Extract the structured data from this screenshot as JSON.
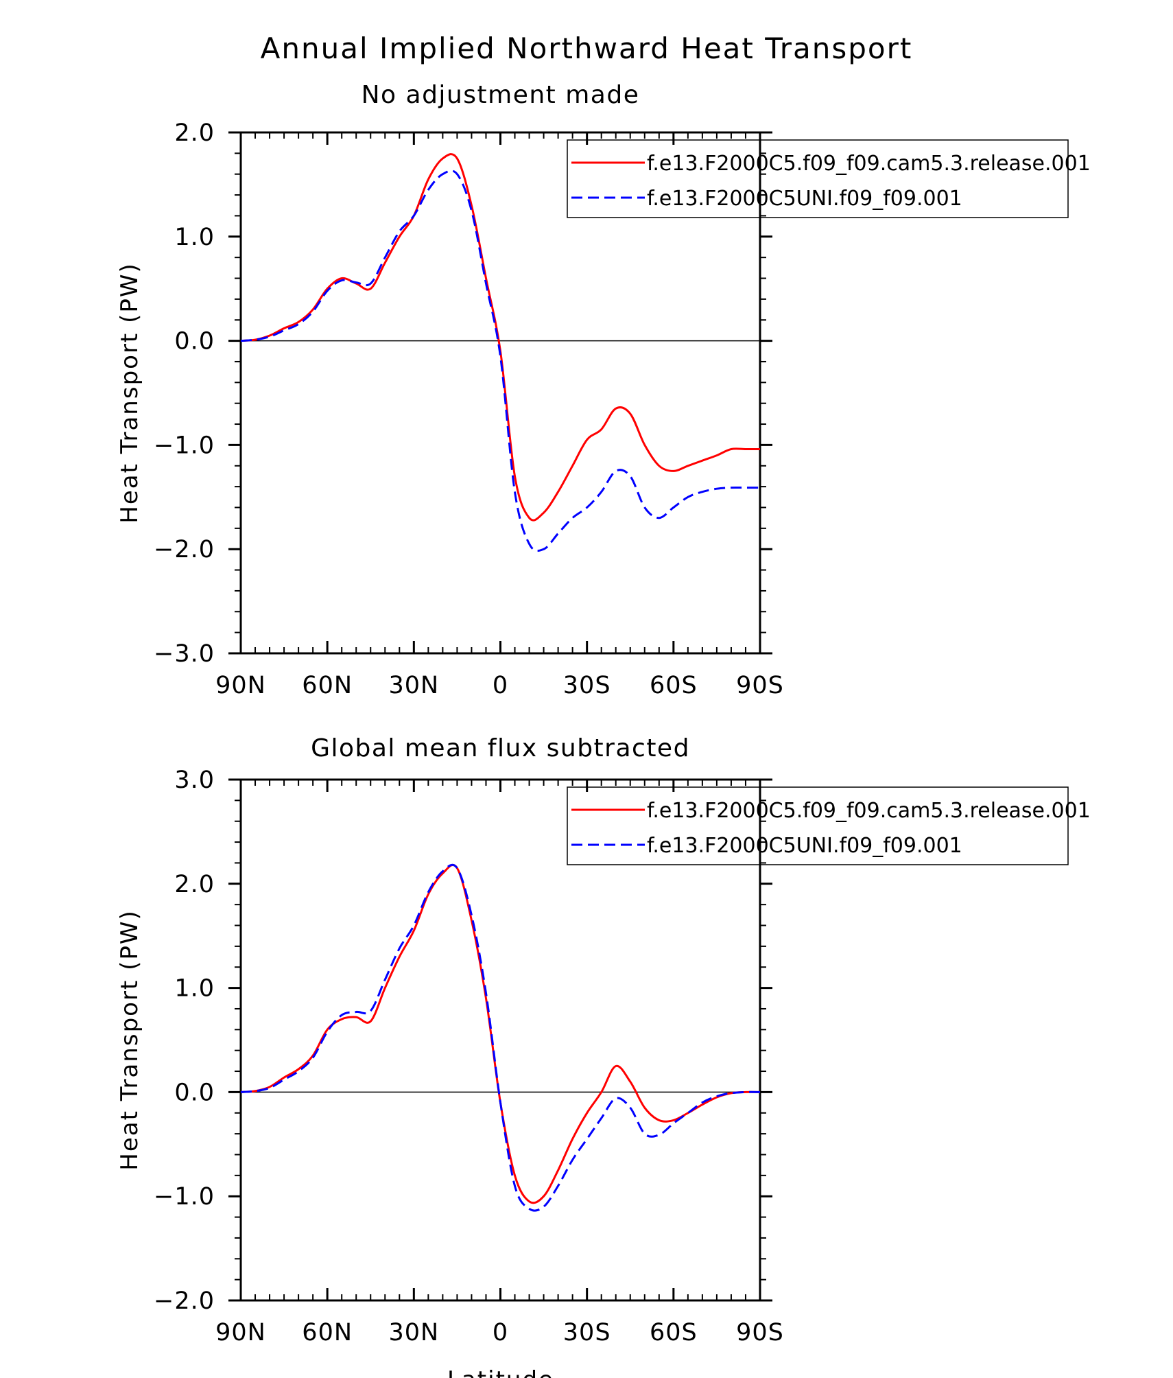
{
  "title": "Annual Implied Northward Heat Transport",
  "xlabel": "Latitude",
  "colors": {
    "series1": "#ff0000",
    "series2": "#0000ff",
    "axis": "#000000"
  },
  "chart_data": [
    {
      "type": "line",
      "title": "No adjustment made",
      "ylabel": "Heat Transport (PW)",
      "xlim": [
        90,
        -90
      ],
      "ylim": [
        -3.0,
        2.0
      ],
      "xticks": [
        90,
        60,
        30,
        0,
        -30,
        -60,
        -90
      ],
      "xtick_labels": [
        "90N",
        "60N",
        "30N",
        "0",
        "30S",
        "60S",
        "90S"
      ],
      "yticks": [
        2.0,
        1.0,
        0.0,
        -1.0,
        -2.0,
        -3.0
      ],
      "ytick_labels": [
        "2.0",
        "1.0",
        "0.0",
        "−1.0",
        "−2.0",
        "−3.0"
      ],
      "zero_line": true,
      "legend_position": "top-right",
      "series": [
        {
          "name": "f.e13.F2000C5.f09_f09.cam5.3.release.001",
          "style": "solid",
          "color": "#ff0000",
          "x": [
            90,
            85,
            80,
            75,
            70,
            65,
            60,
            55,
            50,
            45,
            40,
            35,
            30,
            25,
            20,
            15,
            10,
            5,
            0,
            -5,
            -10,
            -15,
            -20,
            -25,
            -30,
            -35,
            -40,
            -45,
            -50,
            -55,
            -60,
            -65,
            -70,
            -75,
            -80,
            -85,
            -90
          ],
          "y": [
            0,
            0.01,
            0.05,
            0.12,
            0.18,
            0.3,
            0.5,
            0.6,
            0.55,
            0.5,
            0.75,
            1.0,
            1.2,
            1.55,
            1.75,
            1.75,
            1.3,
            0.6,
            -0.1,
            -1.3,
            -1.7,
            -1.65,
            -1.45,
            -1.2,
            -0.95,
            -0.85,
            -0.65,
            -0.7,
            -1.0,
            -1.2,
            -1.25,
            -1.2,
            -1.15,
            -1.1,
            -1.04,
            -1.04,
            -1.04
          ]
        },
        {
          "name": "f.e13.F2000C5UNI.f09_f09.001",
          "style": "dashed",
          "color": "#0000ff",
          "x": [
            90,
            85,
            80,
            75,
            70,
            65,
            60,
            55,
            50,
            45,
            40,
            35,
            30,
            25,
            20,
            15,
            10,
            5,
            0,
            -5,
            -10,
            -15,
            -20,
            -25,
            -30,
            -35,
            -40,
            -45,
            -50,
            -55,
            -60,
            -65,
            -70,
            -75,
            -80,
            -85,
            -90
          ],
          "y": [
            0,
            0.01,
            0.04,
            0.1,
            0.16,
            0.28,
            0.48,
            0.58,
            0.56,
            0.55,
            0.8,
            1.05,
            1.2,
            1.45,
            1.6,
            1.6,
            1.25,
            0.55,
            -0.15,
            -1.45,
            -1.95,
            -2.0,
            -1.85,
            -1.7,
            -1.6,
            -1.45,
            -1.25,
            -1.3,
            -1.6,
            -1.7,
            -1.6,
            -1.5,
            -1.45,
            -1.42,
            -1.41,
            -1.41,
            -1.41
          ]
        }
      ]
    },
    {
      "type": "line",
      "title": "Global mean flux subtracted",
      "ylabel": "Heat Transport (PW)",
      "xlabel": "Latitude",
      "xlim": [
        90,
        -90
      ],
      "ylim": [
        -2.0,
        3.0
      ],
      "xticks": [
        90,
        60,
        30,
        0,
        -30,
        -60,
        -90
      ],
      "xtick_labels": [
        "90N",
        "60N",
        "30N",
        "0",
        "30S",
        "60S",
        "90S"
      ],
      "yticks": [
        3.0,
        2.0,
        1.0,
        0.0,
        -1.0,
        -2.0
      ],
      "ytick_labels": [
        "3.0",
        "2.0",
        "1.0",
        "0.0",
        "−1.0",
        "−2.0"
      ],
      "zero_line": true,
      "legend_position": "top-right",
      "series": [
        {
          "name": "f.e13.F2000C5.f09_f09.cam5.3.release.001",
          "style": "solid",
          "color": "#ff0000",
          "x": [
            90,
            85,
            80,
            75,
            70,
            65,
            60,
            55,
            50,
            45,
            40,
            35,
            30,
            25,
            20,
            15,
            10,
            5,
            0,
            -5,
            -10,
            -15,
            -20,
            -25,
            -30,
            -35,
            -40,
            -45,
            -50,
            -55,
            -60,
            -65,
            -70,
            -75,
            -80,
            -85,
            -90
          ],
          "y": [
            0,
            0.01,
            0.05,
            0.14,
            0.22,
            0.35,
            0.6,
            0.7,
            0.72,
            0.68,
            1.0,
            1.3,
            1.55,
            1.9,
            2.1,
            2.15,
            1.65,
            0.9,
            -0.1,
            -0.8,
            -1.05,
            -1.0,
            -0.75,
            -0.45,
            -0.2,
            0.0,
            0.25,
            0.1,
            -0.15,
            -0.27,
            -0.27,
            -0.2,
            -0.12,
            -0.05,
            -0.01,
            0,
            0
          ]
        },
        {
          "name": "f.e13.F2000C5UNI.f09_f09.001",
          "style": "dashed",
          "color": "#0000ff",
          "x": [
            90,
            85,
            80,
            75,
            70,
            65,
            60,
            55,
            50,
            45,
            40,
            35,
            30,
            25,
            20,
            15,
            10,
            5,
            0,
            -5,
            -10,
            -15,
            -20,
            -25,
            -30,
            -35,
            -40,
            -45,
            -50,
            -55,
            -60,
            -65,
            -70,
            -75,
            -80,
            -85,
            -90
          ],
          "y": [
            0,
            0.01,
            0.04,
            0.12,
            0.2,
            0.33,
            0.58,
            0.74,
            0.77,
            0.78,
            1.08,
            1.38,
            1.6,
            1.92,
            2.12,
            2.15,
            1.7,
            0.95,
            -0.1,
            -0.9,
            -1.12,
            -1.1,
            -0.9,
            -0.65,
            -0.45,
            -0.25,
            -0.06,
            -0.15,
            -0.4,
            -0.41,
            -0.3,
            -0.2,
            -0.1,
            -0.04,
            -0.01,
            0,
            0
          ]
        }
      ]
    }
  ]
}
